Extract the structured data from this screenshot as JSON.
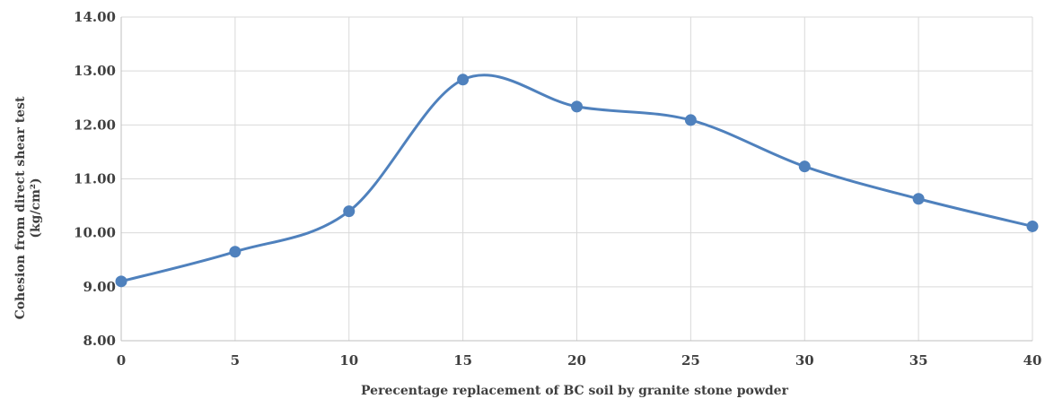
{
  "chart_data": {
    "type": "line",
    "smooth": true,
    "x": [
      0,
      5,
      10,
      15,
      20,
      25,
      30,
      35,
      40
    ],
    "series": [
      {
        "values": [
          9.1,
          9.65,
          10.4,
          12.84,
          12.34,
          12.09,
          11.23,
          10.63,
          10.12
        ]
      }
    ],
    "x_tick_labels": [
      "0",
      "5",
      "10",
      "15",
      "20",
      "25",
      "30",
      "35",
      "40"
    ],
    "y_tick_labels": [
      "8.00",
      "9.00",
      "10.00",
      "11.00",
      "12.00",
      "13.00",
      "14.00"
    ],
    "xlim": [
      0,
      40
    ],
    "ylim": [
      8,
      14
    ],
    "xlabel": "Perecentage replacement of BC soil by granite stone powder",
    "ylabel_line1": "Cohesion from direct shear test",
    "ylabel_line2": "(kg/cm²)",
    "grid": true,
    "line_color": "#4f81bd",
    "grid_color": "#d9d9d9",
    "axis_color": "#bfbfbf"
  }
}
